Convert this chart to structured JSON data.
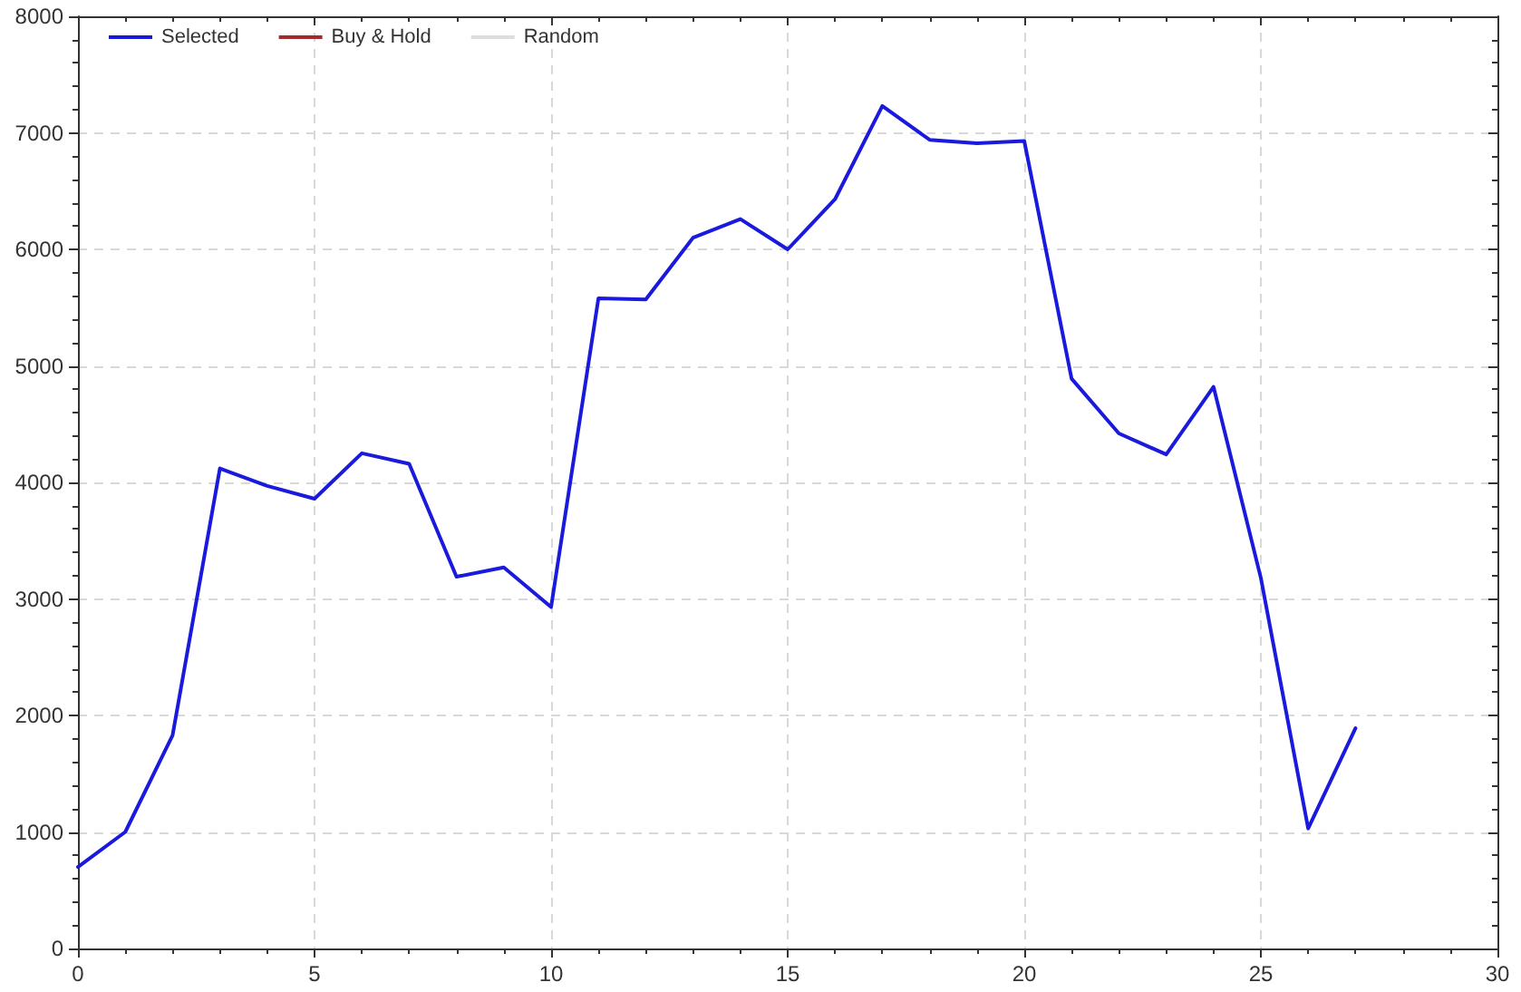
{
  "chart_data": {
    "type": "line",
    "x": [
      0,
      1,
      2,
      3,
      4,
      5,
      6,
      7,
      8,
      9,
      10,
      11,
      12,
      13,
      14,
      15,
      16,
      17,
      18,
      19,
      20,
      21,
      22,
      23,
      24,
      25,
      26,
      27
    ],
    "series": [
      {
        "name": "Selected",
        "color": "#1a1adc",
        "values": [
          700,
          1000,
          1830,
          4120,
          3970,
          3860,
          4250,
          4160,
          3190,
          3270,
          2930,
          5580,
          5570,
          6100,
          6260,
          6000,
          6430,
          7230,
          6940,
          6910,
          6930,
          4890,
          4420,
          4240,
          4820,
          3180,
          1030,
          1890
        ]
      },
      {
        "name": "Buy & Hold",
        "color": "#a52a2a",
        "values": [
          null,
          null,
          null,
          null,
          null,
          null,
          null,
          null,
          null,
          null,
          null,
          null,
          null,
          null,
          null,
          null,
          null,
          null,
          null,
          null,
          null,
          null,
          null,
          null,
          null,
          null,
          null,
          null
        ]
      },
      {
        "name": "Random",
        "color": "#dddddd",
        "values": [
          null,
          null,
          null,
          null,
          null,
          null,
          null,
          null,
          null,
          null,
          null,
          null,
          null,
          null,
          null,
          null,
          null,
          null,
          null,
          null,
          null,
          null,
          null,
          null,
          null,
          null,
          null,
          null
        ]
      }
    ],
    "xlim": [
      0,
      30
    ],
    "xticks": [
      0,
      5,
      10,
      15,
      20,
      25,
      30
    ],
    "ylim": [
      0,
      8000
    ],
    "yticks": [
      0,
      1000,
      2000,
      3000,
      4000,
      5000,
      6000,
      7000,
      8000
    ],
    "grid": true,
    "legend": "top left",
    "marker": "none",
    "line_style": "solid"
  }
}
